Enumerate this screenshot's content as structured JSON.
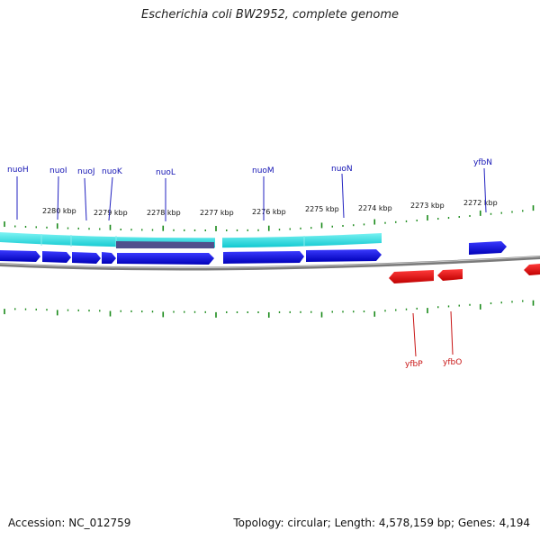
{
  "title": "Escherichia coli BW2952, complete genome",
  "footer": {
    "accession": "Accession: NC_012759",
    "topology": "Topology: circular; Length: 4,578,159 bp; Genes: 4,194"
  },
  "colors": {
    "forward_gene": "#1010e0",
    "reverse_gene": "#e81010",
    "cds_band": "#20e0e0",
    "cds_dark": "#50508c",
    "backbone": "#808080",
    "tick": "#1a8a1a",
    "forward_label": "#1414b4",
    "reverse_label": "#c81414"
  },
  "scale": {
    "labels": [
      "2280 kbp",
      "2279 kbp",
      "2278 kbp",
      "2277 kbp",
      "2276 kbp",
      "2275 kbp",
      "2274 kbp",
      "2273 kbp",
      "2272 kbp"
    ]
  },
  "genes_forward": [
    {
      "name": "nuoH"
    },
    {
      "name": "nuoI"
    },
    {
      "name": "nuoJ"
    },
    {
      "name": "nuoK"
    },
    {
      "name": "nuoL"
    },
    {
      "name": "nuoM"
    },
    {
      "name": "nuoN"
    },
    {
      "name": "yfbN"
    }
  ],
  "genes_reverse": [
    {
      "name": "yfbP"
    },
    {
      "name": "yfbO"
    }
  ]
}
